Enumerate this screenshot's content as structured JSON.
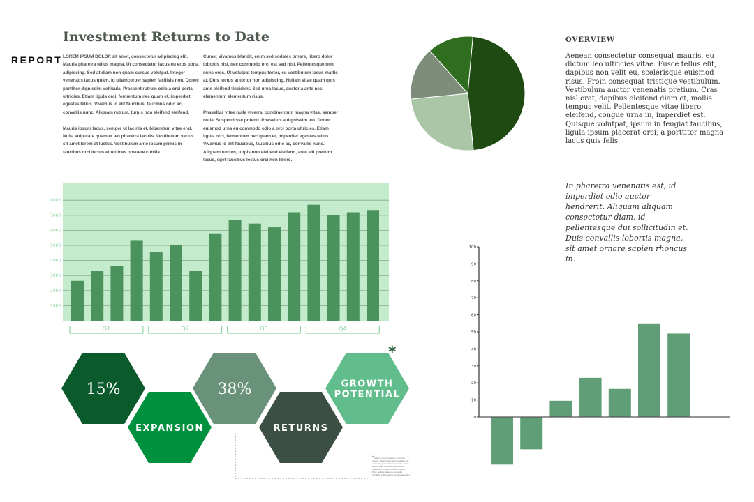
{
  "header": {
    "title": "Investment Returns to Date",
    "section_label": "REPORT"
  },
  "body": {
    "col1": [
      "LOREM IPSUM DOLOR sit amet, consectetur adipiscing elit. Mauris pharetra tellus magna. Ut consectetur lacus eu eros porta adipiscing. Sed at diam non quam cursus volutpat. Integer venenatis lacus quam, id ullamcorper sapien facilisis non. Donec porttitor dignissim vehicula. Praesent rutrum odio a orci porta ultricies. Etiam ligula orci, fermentum nec quam et, imperdiet egestas tellus. Vivamus id elit faucibus, faucibus odio ac, convallis nunc. Aliquam rutrum, turpis non eleifend eleifend,",
      "Mauris ipsum lacus, semper ut lacinia et, bibendum vitae erat. Nulla vulputate quam et leo pharetra iaculis. Vestibulum varius sit amet lorem at luctus. Vestibulum ante ipsum primis in faucibus orci luctus et ultrices posuere cubilia"
    ],
    "col2": [
      "Curae; Vivamus blandit, enim sed sodales ornare, libero dolor lobortis nisl, nec commodo orci est sed nisl. Pellentesque non nunc eros. Ut volutpat tempus tortor, eu vestibulum lacus mattis at. Duis luctus at tortor non adipiscing. Nullam vitae quam quis ante eleifend tincidunt. Sed urna lacus, auctor a ante nec, elementum elementum risus.",
      "Phasellus vitae nulla viverra, condimentum magna vitae, semper nulla. Suspendisse potenti. Phasellus a dignissim leo. Donec euismod urna eu commodo odio a orci porta ultricies. Etiam ligula orci, fermentum nec quam et, imperdiet egestas tellus. Vivamus id elit faucibus, faucibus odio ac, convallis nunc. Aliquam rutrum, turpis non eleifend eleifend, ante elit pretium lacus, eget faucibus lectus orci non libero."
    ]
  },
  "overview": {
    "heading": "OVERVIEW",
    "text": "Aenean consectetur consequat mauris, eu dictum leo ultricies vitae. Fusce tellus elit, dapibus non velit eu, scelerisque euismod risus. Proin consequat tristique vestibulum. Vestibulum auctor venenatis pretium. Cras nisl erat, dapibus eleifend diam et, mollis tempus velit. Pellentesque vitae libero eleifend, congue urna in, imperdiet est. Quisque volutpat, ipsum in feugiat faucibus, ligula ipsum placerat orci, a porttitor magna lacus quis felis."
  },
  "quote": "In pharetra venenatis est, id imperdiet odio auctor hendrerit. Aliquam aliquam consectetur diam, id pellentesque dui sollicitudin et. Duis convallis lobortis magna, sit amet ornare sapien rhoncus in.",
  "hexagons": [
    {
      "text": "15%",
      "color": "#0b5a2c"
    },
    {
      "text": "EXPANSION",
      "color": "#00913f"
    },
    {
      "text": "38%",
      "color": "#6a927a"
    },
    {
      "text": "RETURNS",
      "color": "#3c4f45"
    },
    {
      "text": "GROWTH POTENTIAL",
      "color": "#62bd8c"
    }
  ],
  "footnote": {
    "marker": "*",
    "text": "Mauris in cursus tellus, ut tempor mauris. Mauris lacus dolor, sodales nec molestie eget, auctor nec massa. Nam blandit vitae nisl volutpat pharetra. Maecenas tincidunt porttitor tempor. Proin facilisis vitae leo eu iaculis. Curabitur pellentesque consequat varius."
  },
  "chart_data": [
    {
      "type": "bar",
      "ylim": [
        0,
        9000
      ],
      "yticks": [
        1000,
        2000,
        3000,
        4000,
        5000,
        6000,
        7000,
        8000
      ],
      "grid": true,
      "groups": [
        "Q1",
        "Q2",
        "Q3",
        "Q4"
      ],
      "values": [
        2650,
        3300,
        3650,
        5350,
        4550,
        5050,
        3300,
        5800,
        6700,
        6450,
        6200,
        7200,
        7700,
        7000,
        7200,
        7350
      ],
      "colors": {
        "background": "#c4ebcc",
        "bar": "#4a935d",
        "labels": "#8fd49f"
      }
    },
    {
      "type": "bar",
      "ylim": [
        -30,
        100
      ],
      "yticks": [
        0,
        10,
        20,
        30,
        40,
        50,
        60,
        70,
        80,
        90,
        100
      ],
      "values": [
        -28,
        -19,
        9.5,
        23,
        16.5,
        55,
        49
      ],
      "colors": {
        "bar": "#5f9e76"
      }
    },
    {
      "type": "pie",
      "values": [
        47,
        25,
        15,
        13
      ],
      "colors": [
        "#1f4a12",
        "#abc6a6",
        "#7e8c7a",
        "#2f6e1f"
      ]
    }
  ]
}
